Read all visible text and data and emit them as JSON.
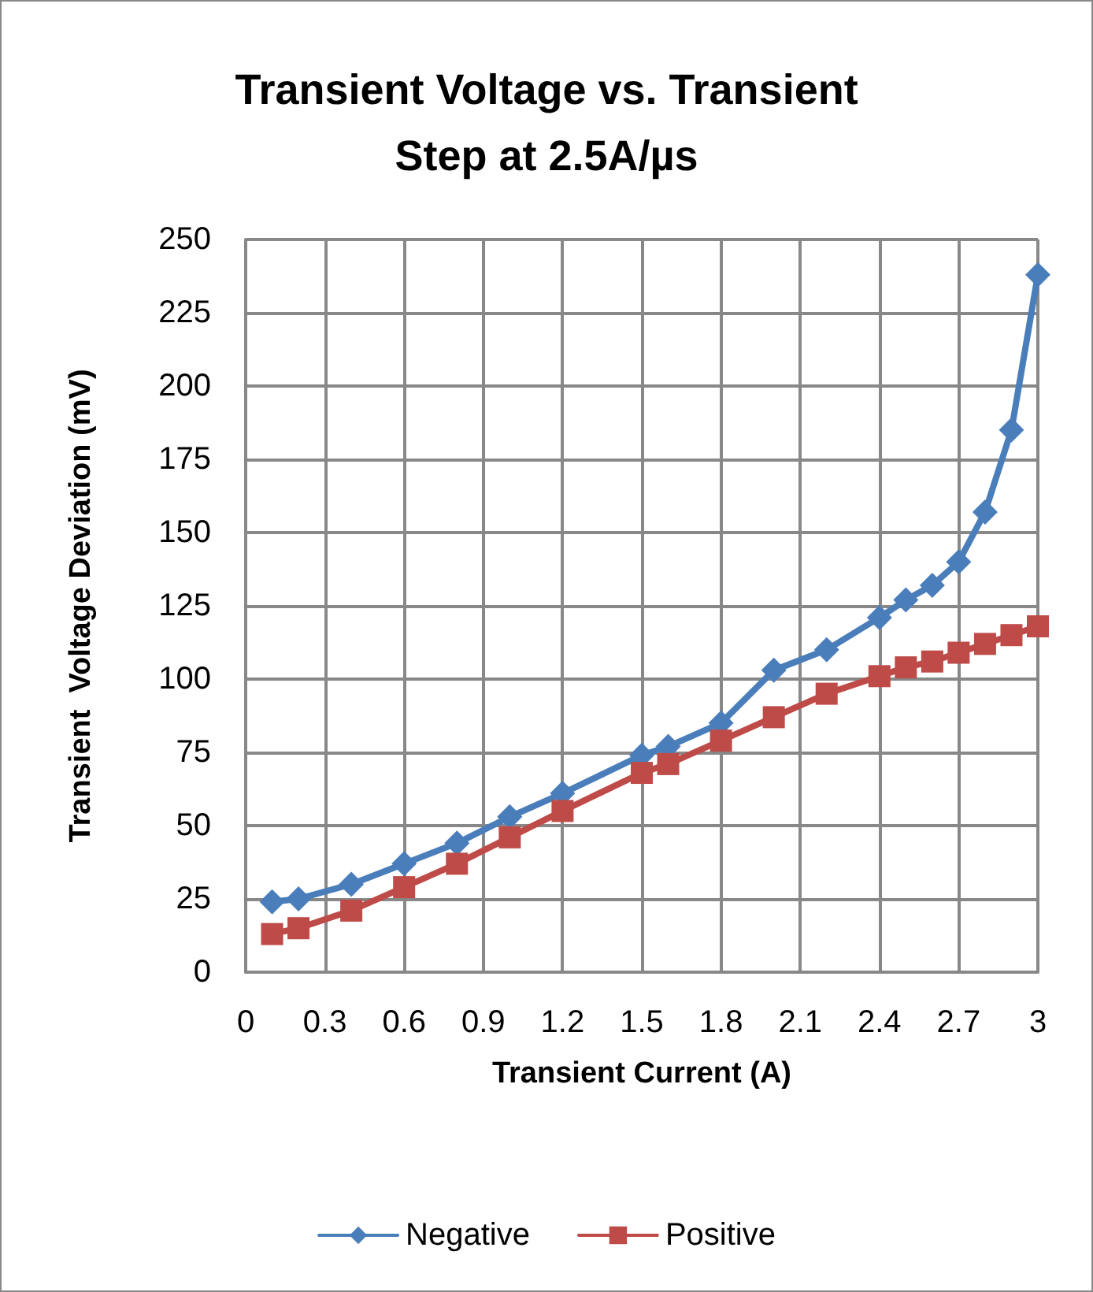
{
  "chart_data": {
    "type": "line",
    "title": "Transient Voltage vs. Transient\nStep at 2.5A/µs",
    "xlabel": "Transient Current (A)",
    "ylabel": "Transient  Voltage Deviation (mV)",
    "x": [
      0.1,
      0.2,
      0.4,
      0.6,
      0.8,
      1.0,
      1.2,
      1.5,
      1.6,
      1.8,
      2.0,
      2.2,
      2.4,
      2.5,
      2.6,
      2.7,
      2.8,
      2.9,
      3.0
    ],
    "series": [
      {
        "name": "Negative",
        "color": "#4a7ebb",
        "marker": "diamond",
        "values": [
          24,
          25,
          30,
          37,
          44,
          53,
          61,
          74,
          77,
          85,
          103,
          110,
          121,
          127,
          132,
          140,
          157,
          185,
          238
        ]
      },
      {
        "name": "Positive",
        "color": "#be4b48",
        "marker": "square",
        "values": [
          13,
          15,
          21,
          29,
          37,
          46,
          55,
          68,
          71,
          79,
          87,
          95,
          101,
          104,
          106,
          109,
          112,
          115,
          118
        ]
      }
    ],
    "xlim": [
      0,
      3
    ],
    "xticks": [
      0,
      0.3,
      0.6,
      0.9,
      1.2,
      1.5,
      1.8,
      2.1,
      2.4,
      2.7,
      3
    ],
    "ylim": [
      0,
      250
    ],
    "yticks": [
      0,
      25,
      50,
      75,
      100,
      125,
      150,
      175,
      200,
      225,
      250
    ],
    "grid": true,
    "legend": "bottom",
    "line_style": "solid"
  }
}
